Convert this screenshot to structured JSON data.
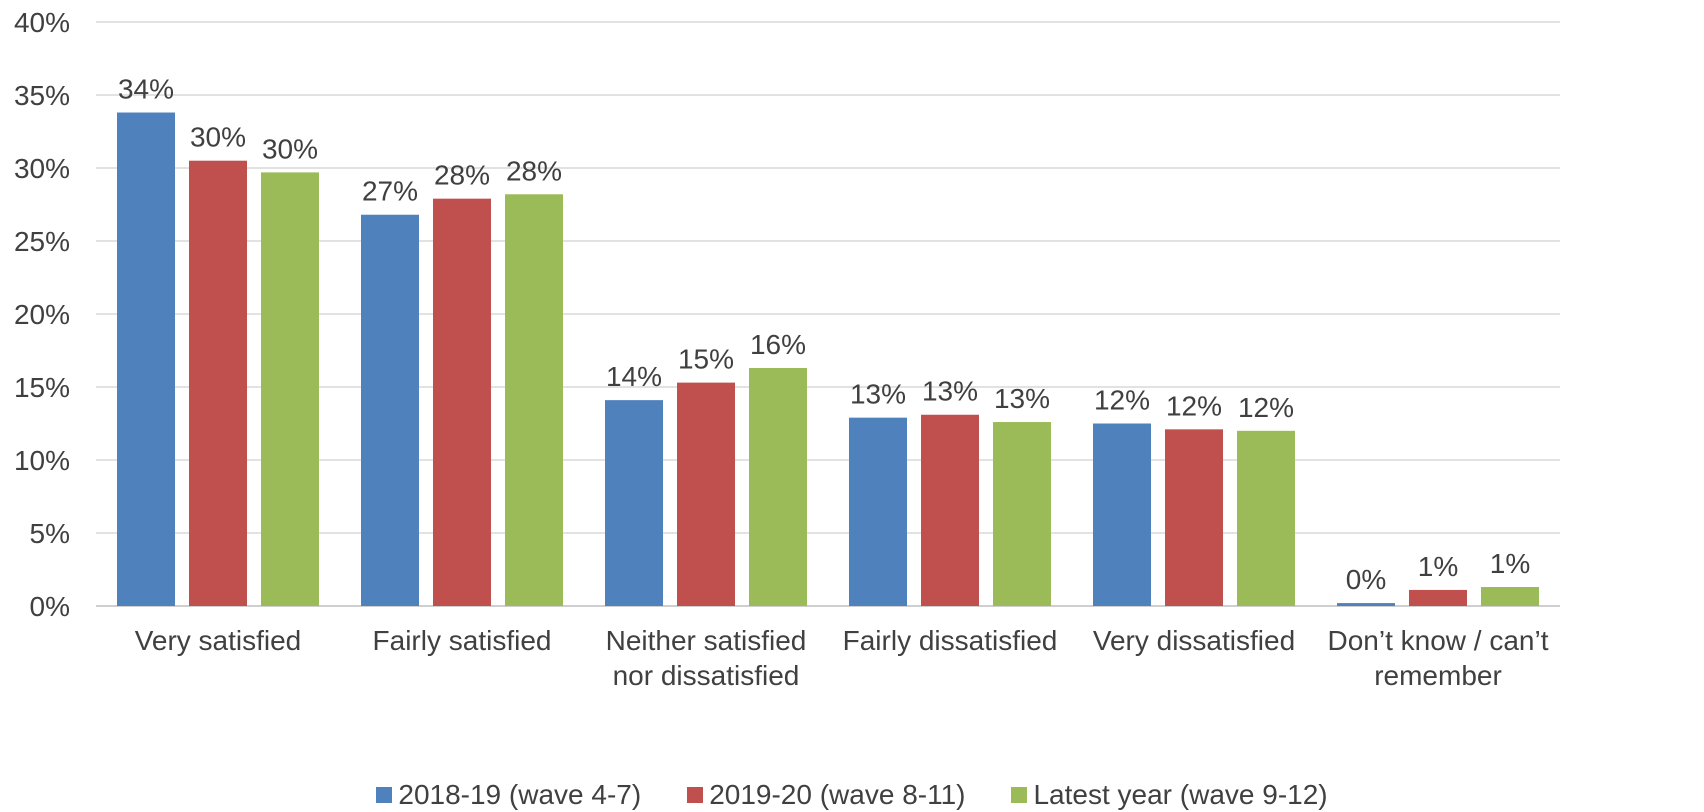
{
  "chart_data": {
    "type": "bar",
    "categories": [
      [
        "Very satisfied"
      ],
      [
        "Fairly satisfied"
      ],
      [
        "Neither satisfied",
        "nor dissatisfied"
      ],
      [
        "Fairly dissatisfied"
      ],
      [
        "Very dissatisfied"
      ],
      [
        "Don’t know / can’t",
        "remember"
      ]
    ],
    "series": [
      {
        "name": "2018-19 (wave 4-7)",
        "color": "#4f81bd",
        "values": [
          33.8,
          26.8,
          14.1,
          12.9,
          12.5,
          0.2
        ],
        "labels": [
          "34%",
          "27%",
          "14%",
          "13%",
          "12%",
          "0%"
        ]
      },
      {
        "name": "2019-20 (wave 8-11)",
        "color": "#c0504d",
        "values": [
          30.5,
          27.9,
          15.3,
          13.1,
          12.1,
          1.1
        ],
        "labels": [
          "30%",
          "28%",
          "15%",
          "13%",
          "12%",
          "1%"
        ]
      },
      {
        "name": "Latest year (wave 9-12)",
        "color": "#9bbb59",
        "values": [
          29.7,
          28.2,
          16.3,
          12.6,
          12.0,
          1.3
        ],
        "labels": [
          "30%",
          "28%",
          "16%",
          "13%",
          "12%",
          "1%"
        ]
      }
    ],
    "y_ticks": [
      "0%",
      "5%",
      "10%",
      "15%",
      "20%",
      "25%",
      "30%",
      "35%",
      "40%"
    ],
    "ylim": [
      0,
      40
    ],
    "grid": true,
    "legend_position": "bottom"
  }
}
